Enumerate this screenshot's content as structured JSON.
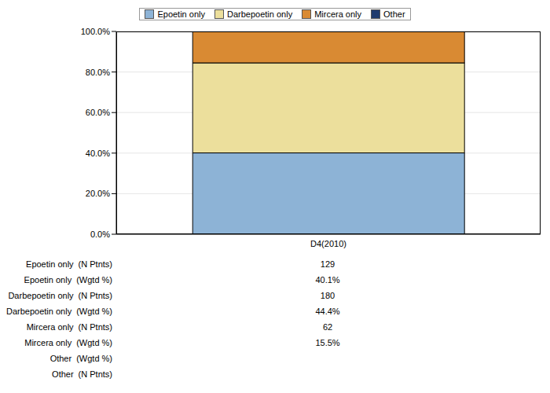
{
  "chart_data": {
    "type": "bar",
    "stacked": true,
    "grid": true,
    "legend": "top",
    "categories": [
      "D4(2010)"
    ],
    "ylim": [
      0,
      100
    ],
    "yticks": [
      {
        "value": 0,
        "label": "0.0%"
      },
      {
        "value": 20,
        "label": "20.0%"
      },
      {
        "value": 40,
        "label": "40.0%"
      },
      {
        "value": 60,
        "label": "60.0%"
      },
      {
        "value": 80,
        "label": "80.0%"
      },
      {
        "value": 100,
        "label": "100.0%"
      }
    ],
    "series": [
      {
        "name": "Epoetin only",
        "color": "#8db3d6",
        "values": [
          40.1
        ],
        "value_labels": [
          "40.1%"
        ],
        "n_patients": [
          129
        ]
      },
      {
        "name": "Darbepoetin only",
        "color": "#ecdf9c",
        "values": [
          44.4
        ],
        "value_labels": [
          "44.4%"
        ],
        "n_patients": [
          180
        ]
      },
      {
        "name": "Mircera only",
        "color": "#d98a33",
        "values": [
          15.5
        ],
        "value_labels": [
          "15.5%"
        ],
        "n_patients": [
          62
        ]
      },
      {
        "name": "Other",
        "color": "#1f3b6e",
        "values": [
          null
        ],
        "value_labels": [
          null
        ],
        "n_patients": [
          null
        ]
      }
    ],
    "table": {
      "measures": [
        "(N Ptnts)",
        "(Wgtd %)"
      ],
      "rows": [
        [
          "Epoetin only",
          0
        ],
        [
          "Epoetin only",
          1
        ],
        [
          "Darbepoetin only",
          0
        ],
        [
          "Darbepoetin only",
          1
        ],
        [
          "Mircera only",
          0
        ],
        [
          "Mircera only",
          1
        ],
        [
          "Other",
          1
        ],
        [
          "Other",
          0
        ]
      ]
    }
  }
}
